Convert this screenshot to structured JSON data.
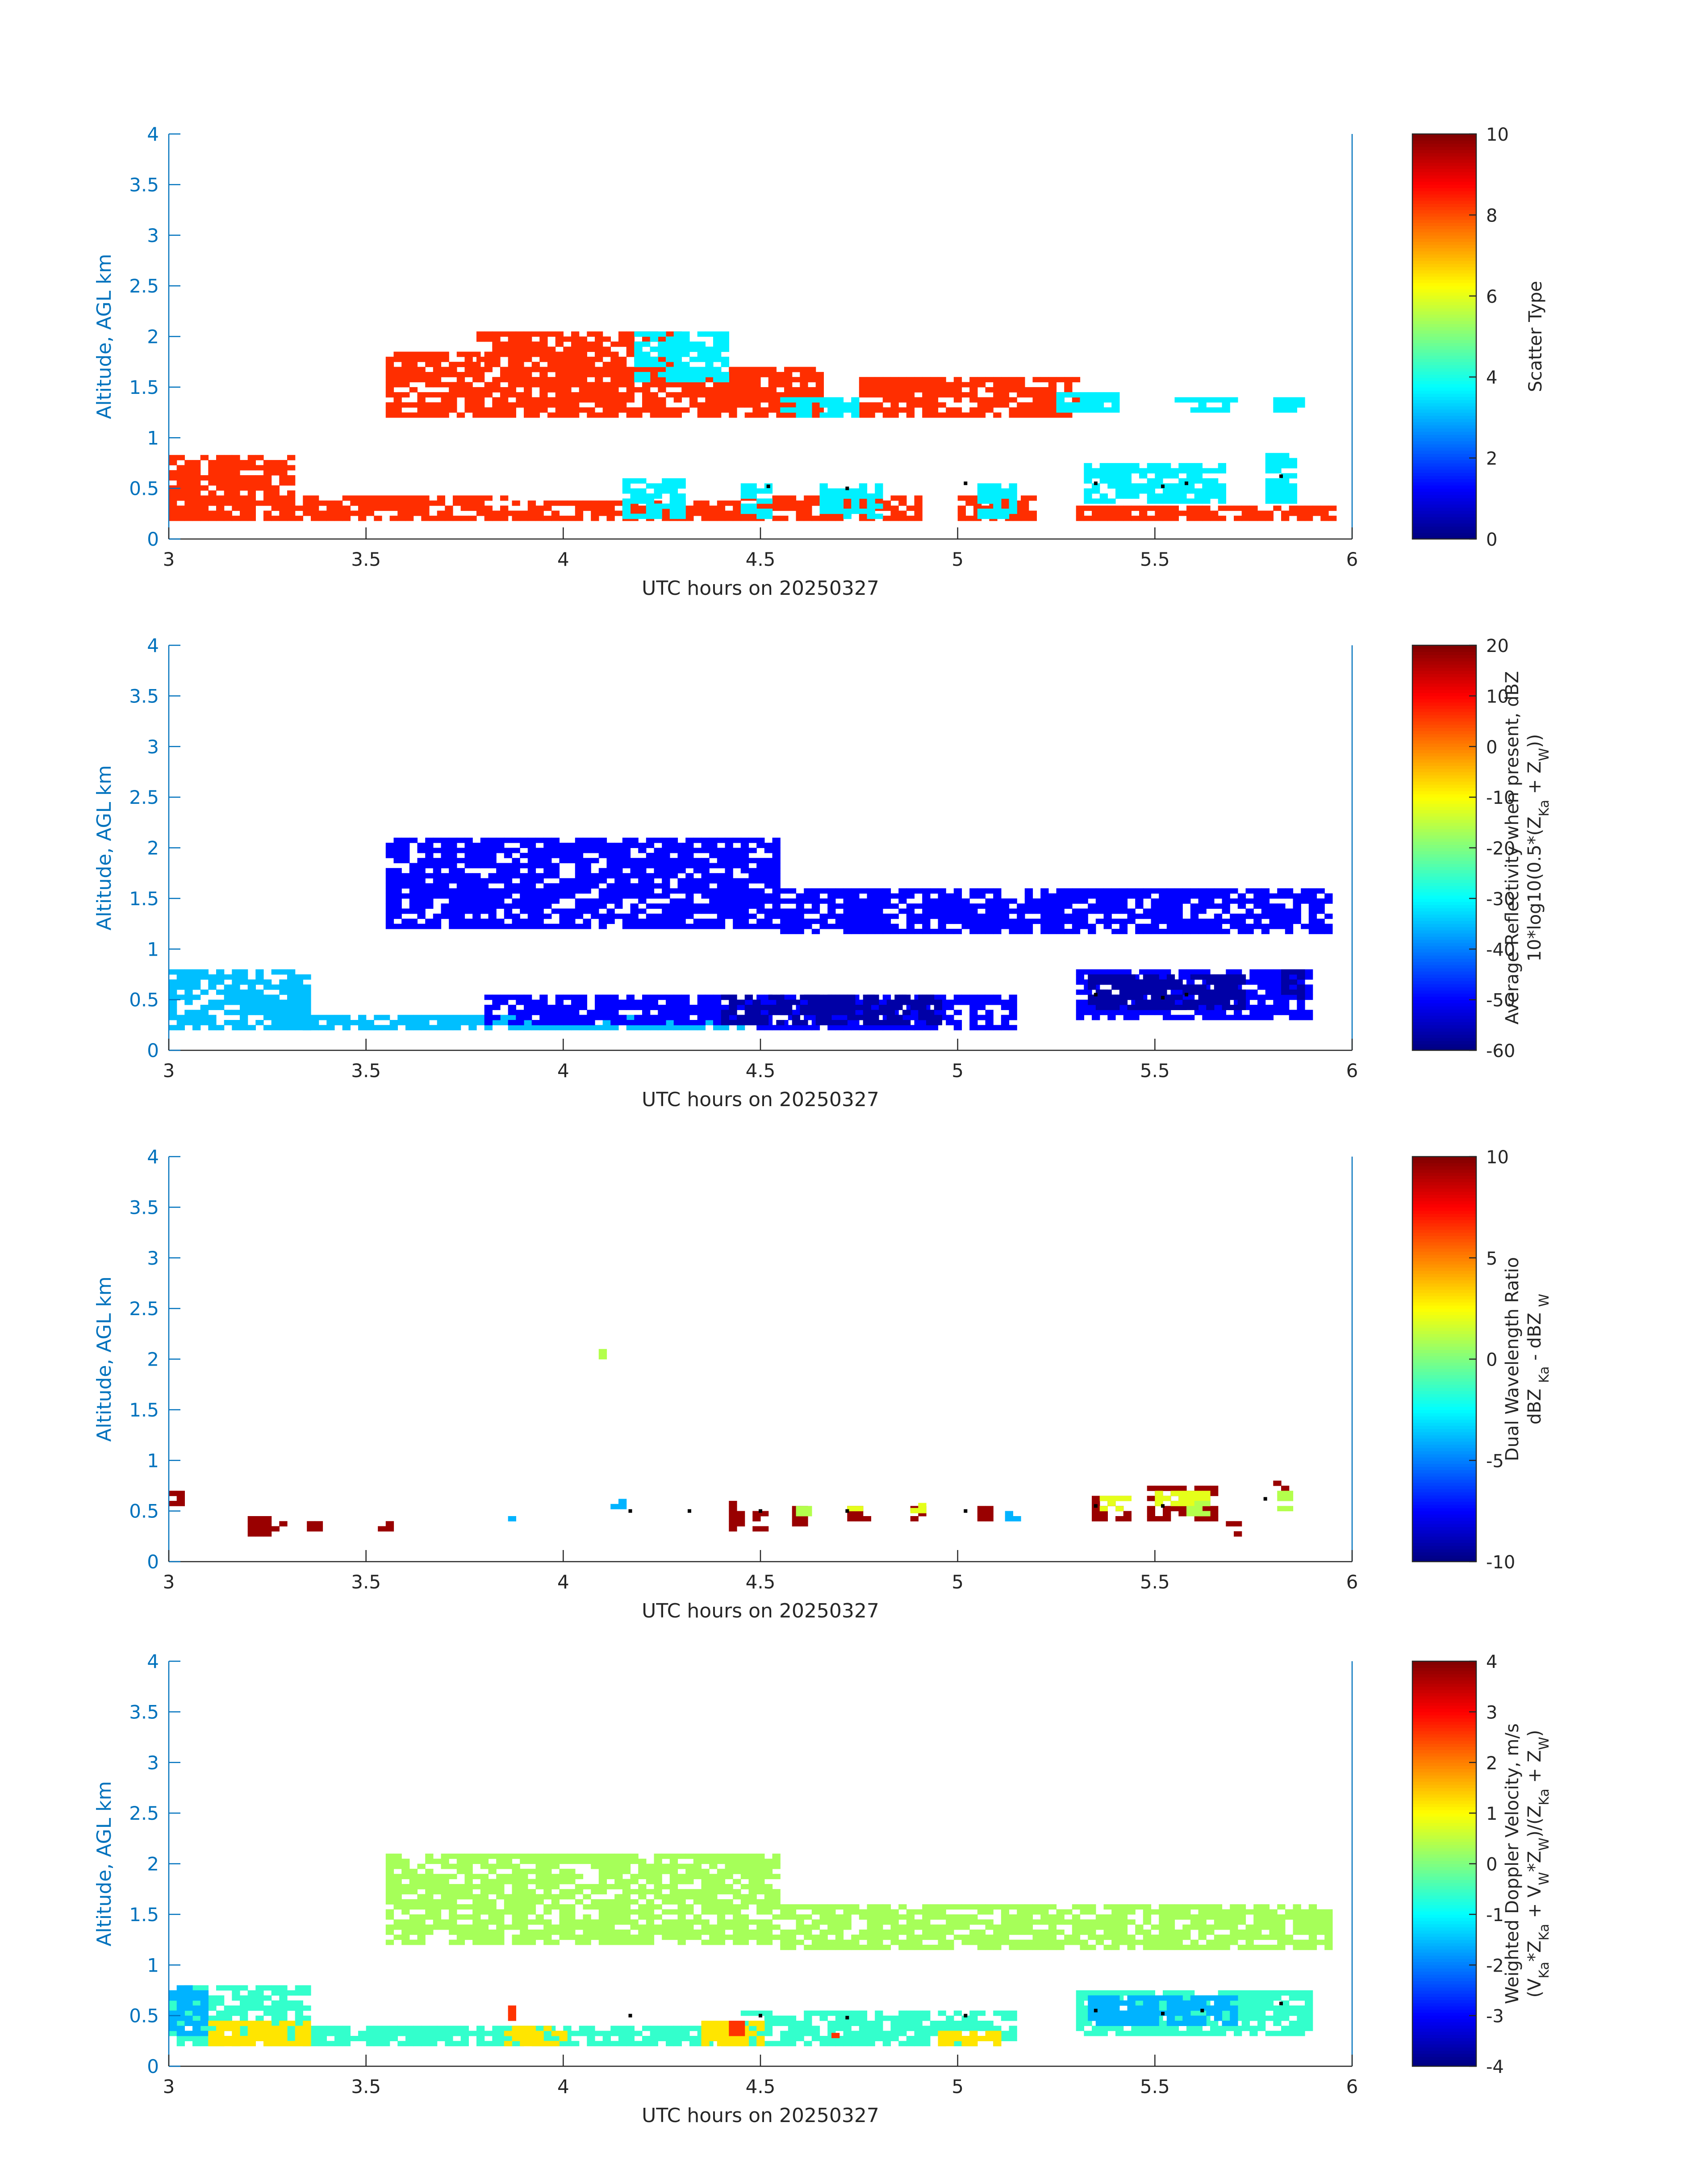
{
  "chart_data": [
    {
      "type": "heatmap",
      "xlabel": "UTC hours on 20250327",
      "ylabel": "Altitude, AGL km",
      "xlim": [
        3,
        6
      ],
      "ylim": [
        0,
        4
      ],
      "xticks": [
        3,
        3.5,
        4,
        4.5,
        5,
        5.5,
        6
      ],
      "xtick_labels": [
        "3",
        "3.5",
        "4",
        "4.5",
        "5",
        "5.5",
        "6"
      ],
      "yticks": [
        0,
        0.5,
        1,
        1.5,
        2,
        2.5,
        3,
        3.5,
        4
      ],
      "ytick_labels": [
        "0",
        "0.5",
        "1",
        "1.5",
        "2",
        "2.5",
        "3",
        "3.5",
        "4"
      ],
      "colorbar": {
        "label_lines": [
          [
            "Scatter Type"
          ]
        ],
        "range": [
          0,
          10
        ],
        "ticks": [
          0,
          2,
          4,
          6,
          8,
          10
        ],
        "tick_labels": [
          "0",
          "2",
          "4",
          "6",
          "8",
          "10"
        ],
        "colormap": "jet"
      },
      "layers": [
        {
          "value": 8.3,
          "regions": [
            [
              3.0,
              3.32,
              0.18,
              0.8
            ],
            [
              3.32,
              3.85,
              0.18,
              0.4
            ],
            [
              3.55,
              3.78,
              1.2,
              1.85
            ],
            [
              3.78,
              4.3,
              1.2,
              2.05
            ],
            [
              3.85,
              4.45,
              0.18,
              0.38
            ],
            [
              4.3,
              4.65,
              1.2,
              1.7
            ],
            [
              4.75,
              5.3,
              1.2,
              1.6
            ],
            [
              4.45,
              4.9,
              0.18,
              0.4
            ],
            [
              5.0,
              5.2,
              0.18,
              0.4
            ],
            [
              5.3,
              5.95,
              0.18,
              0.3
            ]
          ]
        },
        {
          "value": 3.6,
          "regions": [
            [
              4.18,
              4.42,
              1.55,
              2.05
            ],
            [
              4.55,
              4.75,
              1.2,
              1.4
            ],
            [
              5.25,
              5.4,
              1.25,
              1.42
            ],
            [
              5.55,
              5.7,
              1.25,
              1.4
            ],
            [
              5.8,
              5.88,
              1.25,
              1.38
            ],
            [
              4.15,
              4.3,
              0.2,
              0.6
            ],
            [
              4.45,
              4.52,
              0.2,
              0.55
            ],
            [
              4.65,
              4.8,
              0.2,
              0.55
            ],
            [
              5.05,
              5.15,
              0.2,
              0.55
            ],
            [
              5.32,
              5.68,
              0.35,
              0.75
            ],
            [
              5.78,
              5.85,
              0.35,
              0.85
            ]
          ]
        }
      ],
      "points": [
        [
          4.52,
          0.52
        ],
        [
          4.72,
          0.5
        ],
        [
          5.02,
          0.55
        ],
        [
          5.35,
          0.55
        ],
        [
          5.52,
          0.52
        ],
        [
          5.58,
          0.55
        ],
        [
          5.82,
          0.62
        ]
      ]
    },
    {
      "type": "heatmap",
      "xlabel": "UTC hours on 20250327",
      "ylabel": "Altitude, AGL km",
      "xlim": [
        3,
        6
      ],
      "ylim": [
        0,
        4
      ],
      "xticks": [
        3,
        3.5,
        4,
        4.5,
        5,
        5.5,
        6
      ],
      "xtick_labels": [
        "3",
        "3.5",
        "4",
        "4.5",
        "5",
        "5.5",
        "6"
      ],
      "yticks": [
        0,
        0.5,
        1,
        1.5,
        2,
        2.5,
        3,
        3.5,
        4
      ],
      "ytick_labels": [
        "0",
        "0.5",
        "1",
        "1.5",
        "2",
        "2.5",
        "3",
        "3.5",
        "4"
      ],
      "colorbar": {
        "label_lines": [
          [
            "Average Reflectivity when present, dBZ"
          ],
          [
            "10*log10(0.5*(Z",
            {
              "sub": "Ka"
            },
            " + Z",
            {
              "sub": "W"
            },
            "))"
          ]
        ],
        "range": [
          -60,
          20
        ],
        "ticks": [
          -60,
          -50,
          -40,
          -30,
          -20,
          -10,
          0,
          10,
          20
        ],
        "tick_labels": [
          "-60",
          "-50",
          "-40",
          "-30",
          "-20",
          "-10",
          "0",
          "10",
          "20"
        ],
        "colormap": "jet"
      },
      "layers": [
        {
          "value": -35,
          "regions": [
            [
              3.0,
              3.35,
              0.2,
              0.8
            ],
            [
              3.3,
              4.45,
              0.2,
              0.35
            ]
          ]
        },
        {
          "value": -50,
          "regions": [
            [
              3.55,
              4.55,
              1.2,
              2.1
            ],
            [
              4.55,
              5.95,
              1.15,
              1.6
            ],
            [
              3.8,
              4.45,
              0.25,
              0.55
            ],
            [
              4.45,
              5.15,
              0.2,
              0.55
            ],
            [
              5.3,
              5.9,
              0.3,
              0.8
            ]
          ]
        },
        {
          "value": -57,
          "regions": [
            [
              4.4,
              4.95,
              0.25,
              0.55
            ],
            [
              5.33,
              5.72,
              0.4,
              0.75
            ],
            [
              5.82,
              5.88,
              0.5,
              0.8
            ]
          ]
        }
      ],
      "points": [
        [
          5.35,
          0.55
        ],
        [
          5.52,
          0.52
        ],
        [
          5.58,
          0.55
        ]
      ]
    },
    {
      "type": "heatmap",
      "xlabel": "UTC hours on 20250327",
      "ylabel": "Altitude, AGL km",
      "xlim": [
        3,
        6
      ],
      "ylim": [
        0,
        4
      ],
      "xticks": [
        3,
        3.5,
        4,
        4.5,
        5,
        5.5,
        6
      ],
      "xtick_labels": [
        "3",
        "3.5",
        "4",
        "4.5",
        "5",
        "5.5",
        "6"
      ],
      "yticks": [
        0,
        0.5,
        1,
        1.5,
        2,
        2.5,
        3,
        3.5,
        4
      ],
      "ytick_labels": [
        "0",
        "0.5",
        "1",
        "1.5",
        "2",
        "2.5",
        "3",
        "3.5",
        "4"
      ],
      "colorbar": {
        "label_lines": [
          [
            "Dual Wavelength Ratio"
          ],
          [
            "dBZ ",
            {
              "sub": "Ka"
            },
            " - dBZ ",
            {
              "sub": "W"
            }
          ]
        ],
        "range": [
          -10,
          10
        ],
        "ticks": [
          -10,
          -5,
          0,
          5,
          10
        ],
        "tick_labels": [
          "-10",
          "-5",
          "0",
          "5",
          "10"
        ],
        "colormap": "jet"
      },
      "layers": [
        {
          "value": 9.5,
          "regions": [
            [
              3.0,
              3.03,
              0.55,
              0.7
            ],
            [
              3.04,
              3.06,
              0.25,
              0.35
            ],
            [
              3.2,
              3.26,
              0.25,
              0.45
            ],
            [
              3.26,
              3.3,
              0.3,
              0.38
            ],
            [
              3.35,
              3.38,
              0.3,
              0.38
            ],
            [
              3.53,
              3.56,
              0.3,
              0.38
            ],
            [
              4.11,
              4.13,
              2.03,
              2.08
            ],
            [
              4.42,
              4.45,
              0.3,
              0.6
            ],
            [
              4.48,
              4.52,
              0.3,
              0.5
            ],
            [
              4.58,
              4.62,
              0.35,
              0.55
            ],
            [
              4.72,
              4.78,
              0.4,
              0.55
            ],
            [
              4.88,
              4.92,
              0.4,
              0.55
            ],
            [
              5.05,
              5.08,
              0.4,
              0.55
            ],
            [
              5.34,
              5.44,
              0.4,
              0.62
            ],
            [
              5.48,
              5.66,
              0.4,
              0.75
            ],
            [
              5.68,
              5.71,
              0.25,
              0.4
            ],
            [
              5.8,
              5.83,
              0.7,
              0.8
            ]
          ]
        },
        {
          "value": 2,
          "regions": [
            [
              5.36,
              5.44,
              0.5,
              0.62
            ],
            [
              5.5,
              5.64,
              0.55,
              0.7
            ],
            [
              4.72,
              4.78,
              0.5,
              0.6
            ],
            [
              4.88,
              4.92,
              0.48,
              0.58
            ]
          ]
        },
        {
          "value": 1,
          "regions": [
            [
              4.09,
              4.11,
              2.0,
              2.06
            ],
            [
              5.81,
              5.84,
              0.5,
              0.7
            ],
            [
              4.59,
              4.62,
              0.45,
              0.55
            ],
            [
              5.58,
              5.64,
              0.45,
              0.6
            ]
          ]
        },
        {
          "value": -4,
          "regions": [
            [
              3.86,
              3.88,
              0.4,
              0.5
            ],
            [
              4.12,
              4.15,
              0.52,
              0.58
            ],
            [
              5.12,
              5.15,
              0.4,
              0.5
            ]
          ]
        }
      ],
      "points": [
        [
          4.17,
          0.5
        ],
        [
          4.32,
          0.5
        ],
        [
          4.5,
          0.5
        ],
        [
          4.72,
          0.5
        ],
        [
          5.02,
          0.5
        ],
        [
          5.35,
          0.55
        ],
        [
          5.52,
          0.55
        ],
        [
          5.78,
          0.62
        ]
      ]
    },
    {
      "type": "heatmap",
      "xlabel": "UTC hours on 20250327",
      "ylabel": "Altitude, AGL km",
      "xlim": [
        3,
        6
      ],
      "ylim": [
        0,
        4
      ],
      "xticks": [
        3,
        3.5,
        4,
        4.5,
        5,
        5.5,
        6
      ],
      "xtick_labels": [
        "3",
        "3.5",
        "4",
        "4.5",
        "5",
        "5.5",
        "6"
      ],
      "yticks": [
        0,
        0.5,
        1,
        1.5,
        2,
        2.5,
        3,
        3.5,
        4
      ],
      "ytick_labels": [
        "0",
        "0.5",
        "1",
        "1.5",
        "2",
        "2.5",
        "3",
        "3.5",
        "4"
      ],
      "colorbar": {
        "label_lines": [
          [
            "Weighted Doppler Velocity, m/s"
          ],
          [
            "(V",
            {
              "sub": "Ka"
            },
            "*Z",
            {
              "sub": "Ka"
            },
            " + V",
            {
              "sub": "W"
            },
            "*Z",
            {
              "sub": "W"
            },
            ")/(Z",
            {
              "sub": "Ka"
            },
            " + Z",
            {
              "sub": "W"
            },
            ")"
          ]
        ],
        "range": [
          -4,
          4
        ],
        "ticks": [
          -4,
          -3,
          -2,
          -1,
          0,
          1,
          2,
          3,
          4
        ],
        "tick_labels": [
          "-4",
          "-3",
          "-2",
          "-1",
          "0",
          "1",
          "2",
          "3",
          "4"
        ],
        "colormap": "jet"
      },
      "layers": [
        {
          "value": 0.3,
          "regions": [
            [
              3.55,
              4.55,
              1.2,
              2.1
            ],
            [
              4.55,
              5.95,
              1.15,
              1.6
            ]
          ]
        },
        {
          "value": -0.6,
          "regions": [
            [
              3.0,
              3.35,
              0.2,
              0.8
            ],
            [
              3.3,
              4.45,
              0.2,
              0.4
            ],
            [
              4.45,
              5.15,
              0.2,
              0.55
            ],
            [
              5.3,
              5.9,
              0.3,
              0.75
            ]
          ]
        },
        {
          "value": -1.6,
          "regions": [
            [
              5.33,
              5.7,
              0.4,
              0.7
            ],
            [
              3.0,
              3.1,
              0.3,
              0.8
            ]
          ]
        },
        {
          "value": 1.2,
          "regions": [
            [
              3.1,
              3.35,
              0.2,
              0.45
            ],
            [
              3.85,
              4.0,
              0.2,
              0.4
            ],
            [
              4.35,
              4.5,
              0.2,
              0.45
            ],
            [
              4.95,
              5.1,
              0.2,
              0.35
            ]
          ]
        },
        {
          "value": 2.6,
          "regions": [
            [
              3.86,
              3.88,
              0.45,
              0.6
            ],
            [
              4.42,
              4.46,
              0.3,
              0.45
            ],
            [
              4.68,
              4.7,
              0.28,
              0.38
            ]
          ]
        }
      ],
      "points": [
        [
          4.17,
          0.5
        ],
        [
          4.5,
          0.5
        ],
        [
          4.72,
          0.48
        ],
        [
          5.02,
          0.5
        ],
        [
          5.35,
          0.55
        ],
        [
          5.52,
          0.52
        ],
        [
          5.62,
          0.55
        ],
        [
          5.82,
          0.62
        ]
      ]
    }
  ]
}
